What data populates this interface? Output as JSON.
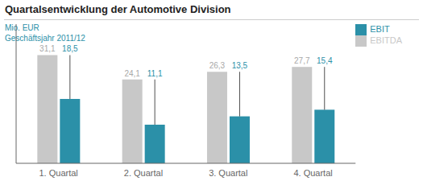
{
  "chart_data": {
    "type": "bar",
    "title": "Quartalsentwicklung der Automotive Division",
    "subtitle": [
      "Mio. EUR",
      "Geschäftsjahr 2011/12"
    ],
    "categories": [
      "1. Quartal",
      "2. Quartal",
      "3. Quartal",
      "4. Quartal"
    ],
    "series": [
      {
        "name": "EBITDA",
        "color": "#c8c8c8",
        "values": [
          31.1,
          24.1,
          26.3,
          27.7
        ],
        "value_labels": [
          "31,1",
          "24,1",
          "26,3",
          "27,7"
        ]
      },
      {
        "name": "EBIT",
        "color": "#2b90a8",
        "values": [
          18.5,
          11.1,
          13.5,
          15.4
        ],
        "value_labels": [
          "18,5",
          "11,1",
          "13,5",
          "15,4"
        ]
      }
    ],
    "ylim": [
      0,
      40
    ],
    "data_labels": true,
    "legend": "upper right",
    "tick_labels": "x"
  }
}
